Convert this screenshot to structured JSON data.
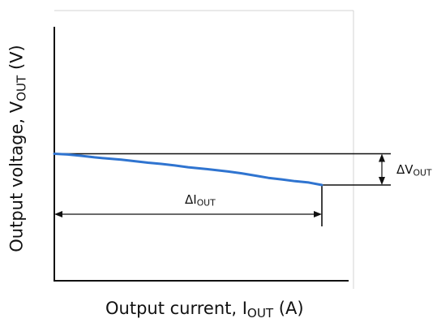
{
  "chart_data": {
    "type": "line",
    "title": "",
    "xlabel": {
      "prefix": "Output current, I",
      "sub": "OUT",
      "suffix": " (A)"
    },
    "ylabel": {
      "prefix": "Output voltage, V",
      "sub": "OUT",
      "suffix": " (V)"
    },
    "xlim": [
      0,
      1.1
    ],
    "ylim": [
      0,
      1.0
    ],
    "grid": false,
    "series": [
      {
        "color": "#2f74d0",
        "x": [
          0,
          0.05,
          0.1,
          0.15,
          0.2,
          0.25,
          0.3,
          0.35,
          0.4,
          0.45,
          0.5,
          0.55,
          0.6,
          0.65,
          0.7,
          0.75,
          0.8,
          0.85,
          0.9,
          0.95,
          1.0
        ],
        "y": [
          0.5,
          0.497,
          0.492,
          0.486,
          0.481,
          0.477,
          0.471,
          0.465,
          0.46,
          0.454,
          0.447,
          0.442,
          0.436,
          0.43,
          0.423,
          0.414,
          0.405,
          0.399,
          0.392,
          0.387,
          0.377
        ]
      }
    ],
    "reference_lines": {
      "upper_y": 0.5,
      "lower_y": 0.377,
      "right_x": 1.0
    },
    "annotations": {
      "delta_i": {
        "prefix": "ΔI",
        "sub": "OUT"
      },
      "delta_v": {
        "prefix": "ΔV",
        "sub": "OUT"
      }
    }
  }
}
